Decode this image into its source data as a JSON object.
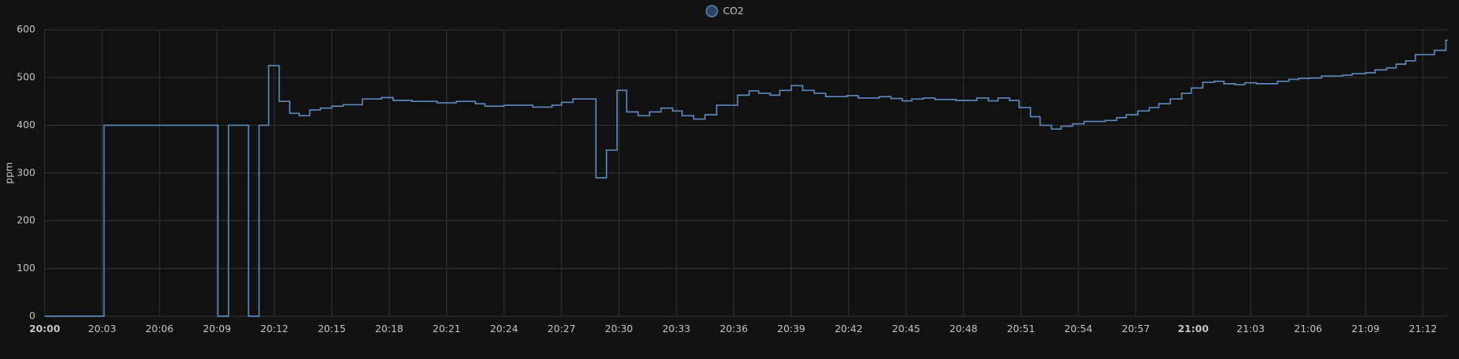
{
  "chart_data": {
    "type": "step-line",
    "y_label": "ppm",
    "xlim": [
      0,
      73.3
    ],
    "ylim": [
      0,
      600
    ],
    "yticks": [
      0,
      100,
      200,
      300,
      400,
      500,
      600
    ],
    "xticks": [
      {
        "value": 0,
        "label": "20:00"
      },
      {
        "value": 3,
        "label": "20:03"
      },
      {
        "value": 6,
        "label": "20:06"
      },
      {
        "value": 9,
        "label": "20:09"
      },
      {
        "value": 12,
        "label": "20:12"
      },
      {
        "value": 15,
        "label": "20:15"
      },
      {
        "value": 18,
        "label": "20:18"
      },
      {
        "value": 21,
        "label": "20:21"
      },
      {
        "value": 24,
        "label": "20:24"
      },
      {
        "value": 27,
        "label": "20:27"
      },
      {
        "value": 30,
        "label": "20:30"
      },
      {
        "value": 33,
        "label": "20:33"
      },
      {
        "value": 36,
        "label": "20:36"
      },
      {
        "value": 39,
        "label": "20:39"
      },
      {
        "value": 42,
        "label": "20:42"
      },
      {
        "value": 45,
        "label": "20:45"
      },
      {
        "value": 48,
        "label": "20:48"
      },
      {
        "value": 51,
        "label": "20:51"
      },
      {
        "value": 54,
        "label": "20:54"
      },
      {
        "value": 57,
        "label": "20:57"
      },
      {
        "value": 60,
        "label": "21:00"
      },
      {
        "value": 63,
        "label": "21:03"
      },
      {
        "value": 66,
        "label": "21:06"
      },
      {
        "value": 69,
        "label": "21:09"
      },
      {
        "value": 72,
        "label": "21:12"
      }
    ],
    "grid": true,
    "series": [
      {
        "name": "CO2",
        "color": "#5b88bd",
        "x": [
          0,
          3.1,
          9.05,
          9.6,
          10.65,
          11.2,
          11.7,
          12.25,
          12.8,
          13.3,
          13.85,
          14.4,
          15.0,
          15.6,
          16.6,
          17.6,
          18.2,
          19.2,
          20.5,
          21.5,
          22.5,
          23.0,
          24.0,
          25.5,
          26.5,
          27.0,
          27.6,
          28.8,
          29.35,
          29.9,
          30.4,
          31.0,
          31.6,
          32.2,
          32.8,
          33.3,
          33.9,
          34.5,
          35.1,
          36.2,
          36.8,
          37.3,
          37.9,
          38.4,
          39.0,
          39.6,
          40.2,
          40.8,
          41.9,
          42.5,
          43.6,
          44.2,
          44.8,
          45.3,
          45.9,
          46.5,
          47.6,
          48.7,
          49.3,
          49.8,
          50.4,
          50.9,
          51.5,
          52.0,
          52.6,
          53.1,
          53.7,
          54.3,
          55.4,
          56.0,
          56.5,
          57.1,
          57.7,
          58.2,
          58.8,
          59.4,
          59.9,
          60.5,
          61.1,
          61.6,
          62.2,
          62.7,
          63.3,
          64.4,
          65.0,
          65.5,
          66.1,
          66.7,
          67.8,
          68.3,
          69.0,
          69.5,
          70.1,
          70.6,
          71.1,
          71.6,
          72.6,
          73.2
        ],
        "values": [
          0,
          400,
          0,
          400,
          0,
          400,
          525,
          450,
          425,
          420,
          432,
          436,
          440,
          443,
          455,
          458,
          452,
          450,
          447,
          450,
          445,
          440,
          442,
          438,
          442,
          448,
          455,
          290,
          348,
          473,
          428,
          420,
          428,
          436,
          430,
          420,
          413,
          422,
          442,
          463,
          472,
          467,
          463,
          473,
          483,
          473,
          467,
          460,
          462,
          457,
          460,
          456,
          451,
          455,
          457,
          454,
          452,
          457,
          451,
          457,
          452,
          437,
          418,
          400,
          392,
          398,
          403,
          408,
          410,
          416,
          422,
          430,
          437,
          445,
          455,
          467,
          478,
          490,
          492,
          487,
          485,
          489,
          487,
          492,
          496,
          498,
          499,
          503,
          505,
          508,
          510,
          516,
          520,
          528,
          535,
          548,
          557,
          578
        ]
      }
    ]
  }
}
